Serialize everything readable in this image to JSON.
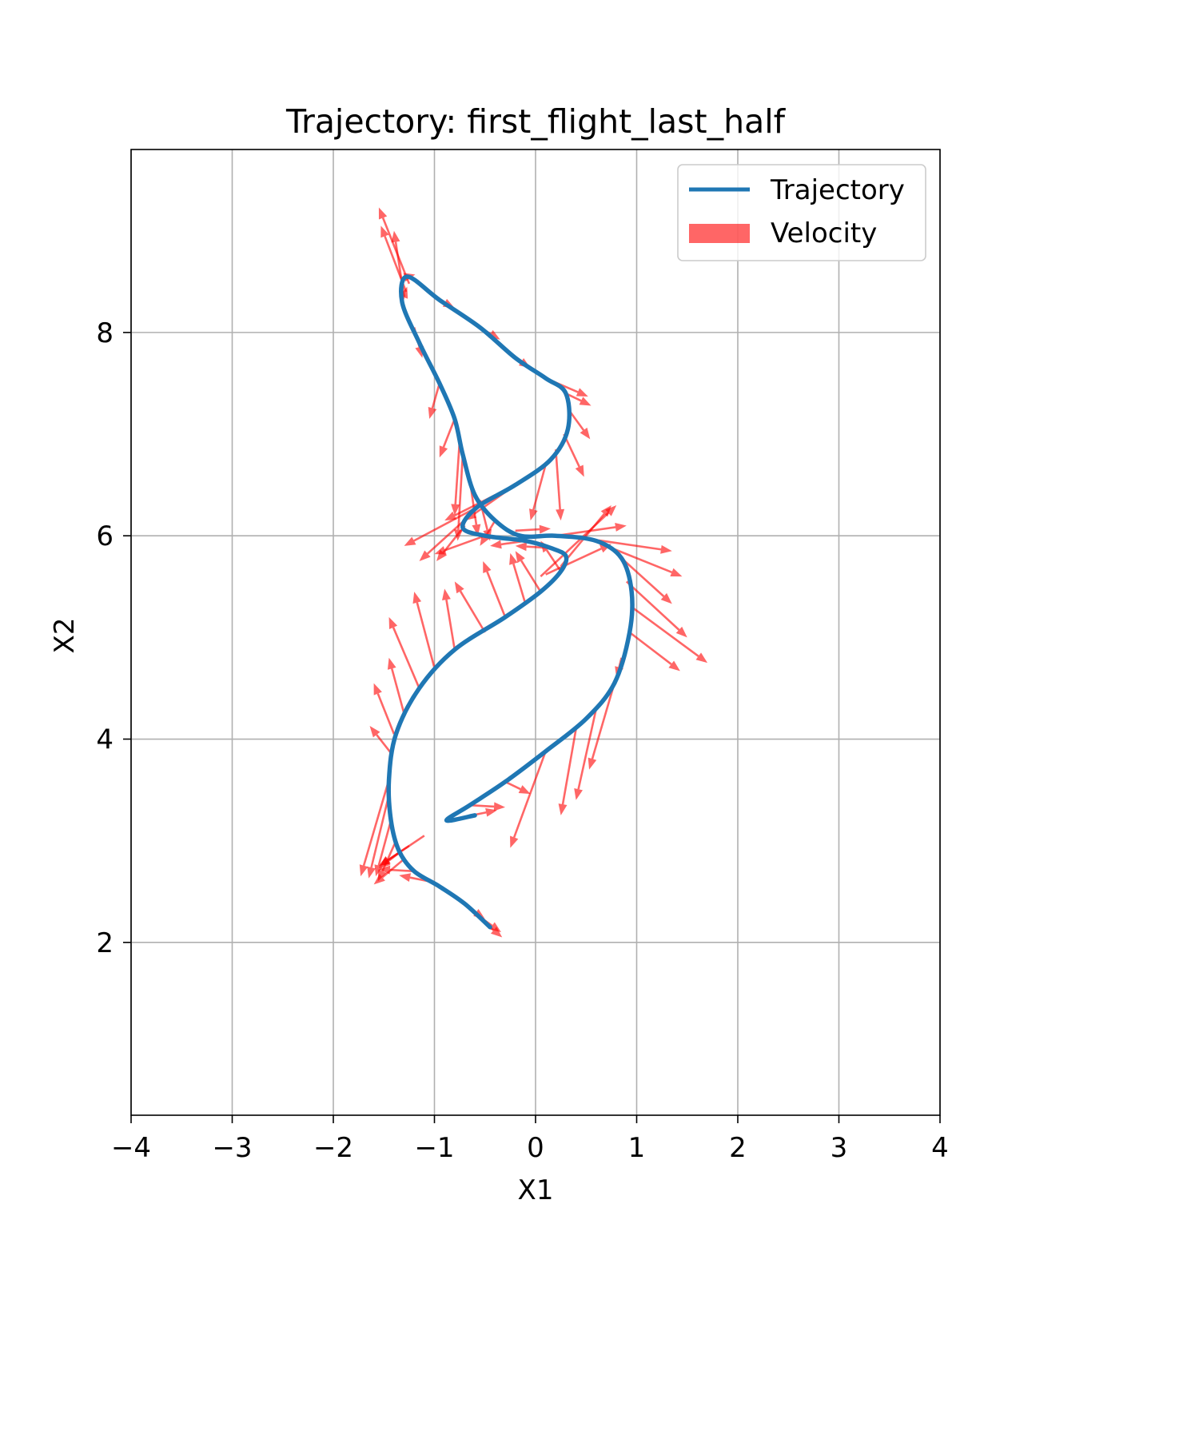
{
  "chart_data": {
    "type": "line",
    "title": "Trajectory: first_flight_last_half",
    "xlabel": "X1",
    "ylabel": "X2",
    "xlim": [
      -4,
      4
    ],
    "ylim": [
      0.3,
      9.8
    ],
    "xticks": [
      -4,
      -3,
      -2,
      -1,
      0,
      1,
      2,
      3,
      4
    ],
    "xtick_labels": [
      "−4",
      "−3",
      "−2",
      "−1",
      "0",
      "1",
      "2",
      "3",
      "4"
    ],
    "yticks": [
      2,
      4,
      6,
      8
    ],
    "ytick_labels": [
      "2",
      "4",
      "6",
      "8"
    ],
    "grid": true,
    "legend_position": "upper right",
    "colors": {
      "trajectory": "#1f77b4",
      "velocity": "#ff0000"
    },
    "series": [
      {
        "name": "Trajectory",
        "kind": "line",
        "points": [
          [
            -0.45,
            2.15
          ],
          [
            -0.7,
            2.38
          ],
          [
            -0.95,
            2.55
          ],
          [
            -1.2,
            2.7
          ],
          [
            -1.35,
            2.9
          ],
          [
            -1.43,
            3.2
          ],
          [
            -1.45,
            3.6
          ],
          [
            -1.38,
            4.05
          ],
          [
            -1.15,
            4.5
          ],
          [
            -0.8,
            4.88
          ],
          [
            -0.3,
            5.2
          ],
          [
            0.05,
            5.45
          ],
          [
            0.25,
            5.65
          ],
          [
            0.3,
            5.8
          ],
          [
            0.15,
            5.88
          ],
          [
            -0.1,
            5.95
          ],
          [
            -0.5,
            6.0
          ],
          [
            -0.72,
            6.08
          ],
          [
            -0.58,
            6.28
          ],
          [
            -0.2,
            6.5
          ],
          [
            0.15,
            6.75
          ],
          [
            0.32,
            7.05
          ],
          [
            0.3,
            7.4
          ],
          [
            0.1,
            7.55
          ],
          [
            -0.2,
            7.75
          ],
          [
            -0.55,
            8.05
          ],
          [
            -0.95,
            8.32
          ],
          [
            -1.27,
            8.55
          ],
          [
            -1.32,
            8.3
          ],
          [
            -1.15,
            7.9
          ],
          [
            -0.95,
            7.5
          ],
          [
            -0.8,
            7.15
          ],
          [
            -0.72,
            6.8
          ],
          [
            -0.6,
            6.4
          ],
          [
            -0.4,
            6.15
          ],
          [
            -0.15,
            6.0
          ],
          [
            0.2,
            6.0
          ],
          [
            0.6,
            5.95
          ],
          [
            0.85,
            5.78
          ],
          [
            0.95,
            5.45
          ],
          [
            0.93,
            5.05
          ],
          [
            0.78,
            4.55
          ],
          [
            0.5,
            4.2
          ],
          [
            0.1,
            3.88
          ],
          [
            -0.3,
            3.58
          ],
          [
            -0.65,
            3.35
          ],
          [
            -0.88,
            3.2
          ],
          [
            -0.6,
            3.25
          ]
        ]
      },
      {
        "name": "Velocity",
        "kind": "quiver",
        "vectors": [
          [
            -0.45,
            2.15,
            0.12,
            -0.1
          ],
          [
            -0.62,
            2.3,
            0.28,
            -0.2
          ],
          [
            -0.85,
            2.48,
            0.35,
            -0.25
          ],
          [
            -1.05,
            2.6,
            -0.3,
            0.06
          ],
          [
            -1.2,
            2.7,
            -0.35,
            0.02
          ],
          [
            -1.3,
            2.82,
            -0.3,
            -0.25
          ],
          [
            -1.38,
            3.0,
            -0.18,
            -0.4
          ],
          [
            -1.43,
            3.2,
            -0.15,
            -0.55
          ],
          [
            -1.45,
            3.45,
            -0.2,
            -0.82
          ],
          [
            -1.45,
            3.6,
            -0.28,
            -0.95
          ],
          [
            -1.42,
            3.85,
            -0.22,
            0.28
          ],
          [
            -1.4,
            4.05,
            -0.2,
            0.5
          ],
          [
            -1.3,
            4.25,
            -0.15,
            0.55
          ],
          [
            -1.15,
            4.5,
            -0.3,
            0.7
          ],
          [
            -1.0,
            4.7,
            -0.2,
            0.75
          ],
          [
            -0.8,
            4.88,
            -0.1,
            0.6
          ],
          [
            -0.5,
            5.05,
            -0.3,
            0.5
          ],
          [
            -0.3,
            5.2,
            -0.22,
            0.55
          ],
          [
            -0.1,
            5.33,
            -0.15,
            0.5
          ],
          [
            0.05,
            5.45,
            -0.25,
            0.4
          ],
          [
            0.25,
            5.65,
            -0.2,
            0.3
          ],
          [
            0.15,
            5.88,
            -0.35,
            0.02
          ],
          [
            -0.1,
            5.95,
            -0.35,
            -0.05
          ],
          [
            -0.5,
            6.0,
            -0.5,
            -0.18
          ],
          [
            -0.7,
            6.1,
            -0.28,
            -0.35
          ],
          [
            -0.65,
            6.2,
            -0.5,
            -0.45
          ],
          [
            -0.58,
            6.28,
            -0.72,
            -0.38
          ],
          [
            -0.4,
            6.4,
            -0.5,
            -0.25
          ],
          [
            -0.2,
            6.5,
            -0.5,
            -0.35
          ],
          [
            0.1,
            6.7,
            -0.15,
            -0.55
          ],
          [
            0.2,
            6.85,
            0.05,
            -0.7
          ],
          [
            0.28,
            7.0,
            0.2,
            -0.42
          ],
          [
            0.32,
            7.25,
            0.22,
            -0.3
          ],
          [
            0.3,
            7.4,
            0.25,
            -0.12
          ],
          [
            0.1,
            7.55,
            0.42,
            -0.18
          ],
          [
            -0.2,
            7.75,
            0.15,
            -0.1
          ],
          [
            -0.55,
            8.05,
            0.2,
            -0.12
          ],
          [
            -0.95,
            8.32,
            0.15,
            -0.08
          ],
          [
            -1.27,
            8.55,
            0.08,
            0.02
          ],
          [
            -1.25,
            8.48,
            -0.3,
            0.75
          ],
          [
            -1.28,
            8.4,
            -0.25,
            0.65
          ],
          [
            -1.3,
            8.35,
            -0.1,
            0.65
          ],
          [
            -1.32,
            8.3,
            0.05,
            0.15
          ],
          [
            -1.2,
            8.05,
            0.08,
            -0.3
          ],
          [
            -0.95,
            7.5,
            -0.1,
            -0.35
          ],
          [
            -0.8,
            7.15,
            -0.15,
            -0.38
          ],
          [
            -0.75,
            6.95,
            -0.05,
            -0.75
          ],
          [
            -0.72,
            6.8,
            -0.05,
            -0.85
          ],
          [
            -0.65,
            6.55,
            0.08,
            -0.55
          ],
          [
            -0.55,
            6.35,
            0.1,
            -0.4
          ],
          [
            -0.4,
            6.15,
            -0.15,
            -0.25
          ],
          [
            -0.2,
            6.05,
            0.35,
            0.02
          ],
          [
            0.2,
            6.0,
            0.7,
            0.1
          ],
          [
            0.45,
            5.98,
            0.9,
            -0.13
          ],
          [
            0.65,
            5.92,
            0.8,
            -0.32
          ],
          [
            0.85,
            5.78,
            0.5,
            -0.45
          ],
          [
            0.9,
            5.55,
            0.6,
            -0.55
          ],
          [
            0.95,
            5.3,
            0.75,
            -0.55
          ],
          [
            0.93,
            5.05,
            0.5,
            -0.38
          ],
          [
            0.85,
            4.8,
            -0.05,
            -0.2
          ],
          [
            0.78,
            4.55,
            -0.25,
            -0.85
          ],
          [
            0.6,
            4.3,
            -0.2,
            -0.9
          ],
          [
            0.4,
            4.1,
            -0.15,
            -0.85
          ],
          [
            0.1,
            3.88,
            -0.35,
            -0.95
          ],
          [
            -0.3,
            3.58,
            0.25,
            -0.12
          ],
          [
            -0.65,
            3.35,
            0.35,
            -0.02
          ],
          [
            -0.88,
            3.2,
            0.5,
            0.1
          ],
          [
            -1.1,
            3.05,
            -0.45,
            -0.3
          ],
          [
            -1.25,
            2.95,
            -0.3,
            -0.2
          ],
          [
            -1.35,
            2.88,
            -0.2,
            -0.15
          ],
          [
            0.25,
            5.7,
            0.5,
            0.6
          ],
          [
            0.05,
            5.6,
            0.75,
            0.7
          ],
          [
            0.1,
            5.62,
            0.65,
            0.3
          ]
        ]
      }
    ]
  },
  "legend": {
    "items": [
      {
        "label": "Trajectory"
      },
      {
        "label": "Velocity"
      }
    ]
  }
}
